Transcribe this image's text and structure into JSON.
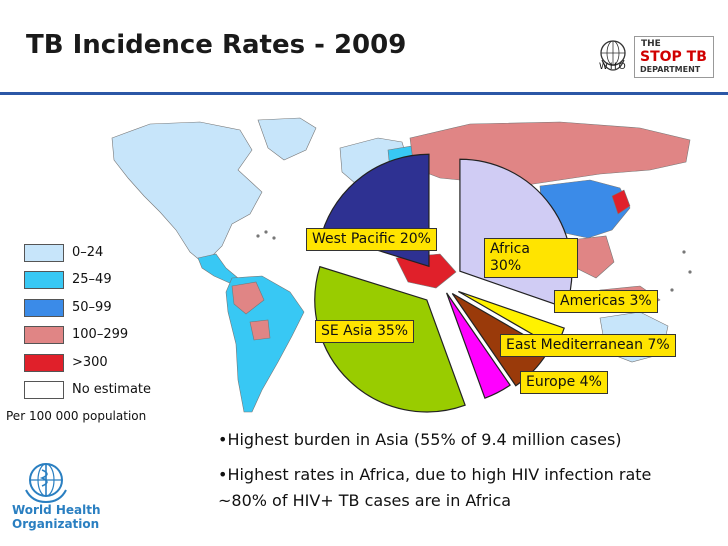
{
  "header": {
    "title": "TB Incidence Rates - 2009",
    "who_abbrev": "WHO",
    "stoptb": {
      "line1": "THE",
      "line2": "STOP TB",
      "line3": "DEPARTMENT"
    }
  },
  "legend": {
    "items": [
      {
        "label": "0–24",
        "color": "#c7e5fa"
      },
      {
        "label": "25–49",
        "color": "#38c8f4"
      },
      {
        "label": "50–99",
        "color": "#3b8be8"
      },
      {
        "label": "100–299",
        "color": "#e08585"
      },
      {
        "label": ">300",
        "color": "#e0202a"
      },
      {
        "label": "No estimate",
        "color": "#ffffff"
      }
    ],
    "unit": "Per 100 000 population"
  },
  "chart_data": {
    "type": "pie",
    "slices": [
      {
        "label": "West Pacific 20%",
        "value": 20,
        "color": "#2e3192"
      },
      {
        "label": "Africa\n30%",
        "value": 30,
        "color": "#d0ccf4"
      },
      {
        "label": "Americas 3%",
        "value": 3,
        "color": "#fff200"
      },
      {
        "label": "East Mediterranean 7%",
        "value": 7,
        "color": "#9a3a0a"
      },
      {
        "label": "Europe 4%",
        "value": 4,
        "color": "#ff00ff"
      },
      {
        "label": "SE Asia 35%",
        "value": 35,
        "color": "#99cc00"
      }
    ]
  },
  "bullets": [
    "•Highest burden in Asia (55% of 9.4 million cases)",
    "•Highest rates in Africa, due to high HIV infection rate",
    "~80% of HIV+ TB cases are in Africa"
  ],
  "footer": {
    "org_line1": "World Health",
    "org_line2": "Organization"
  }
}
